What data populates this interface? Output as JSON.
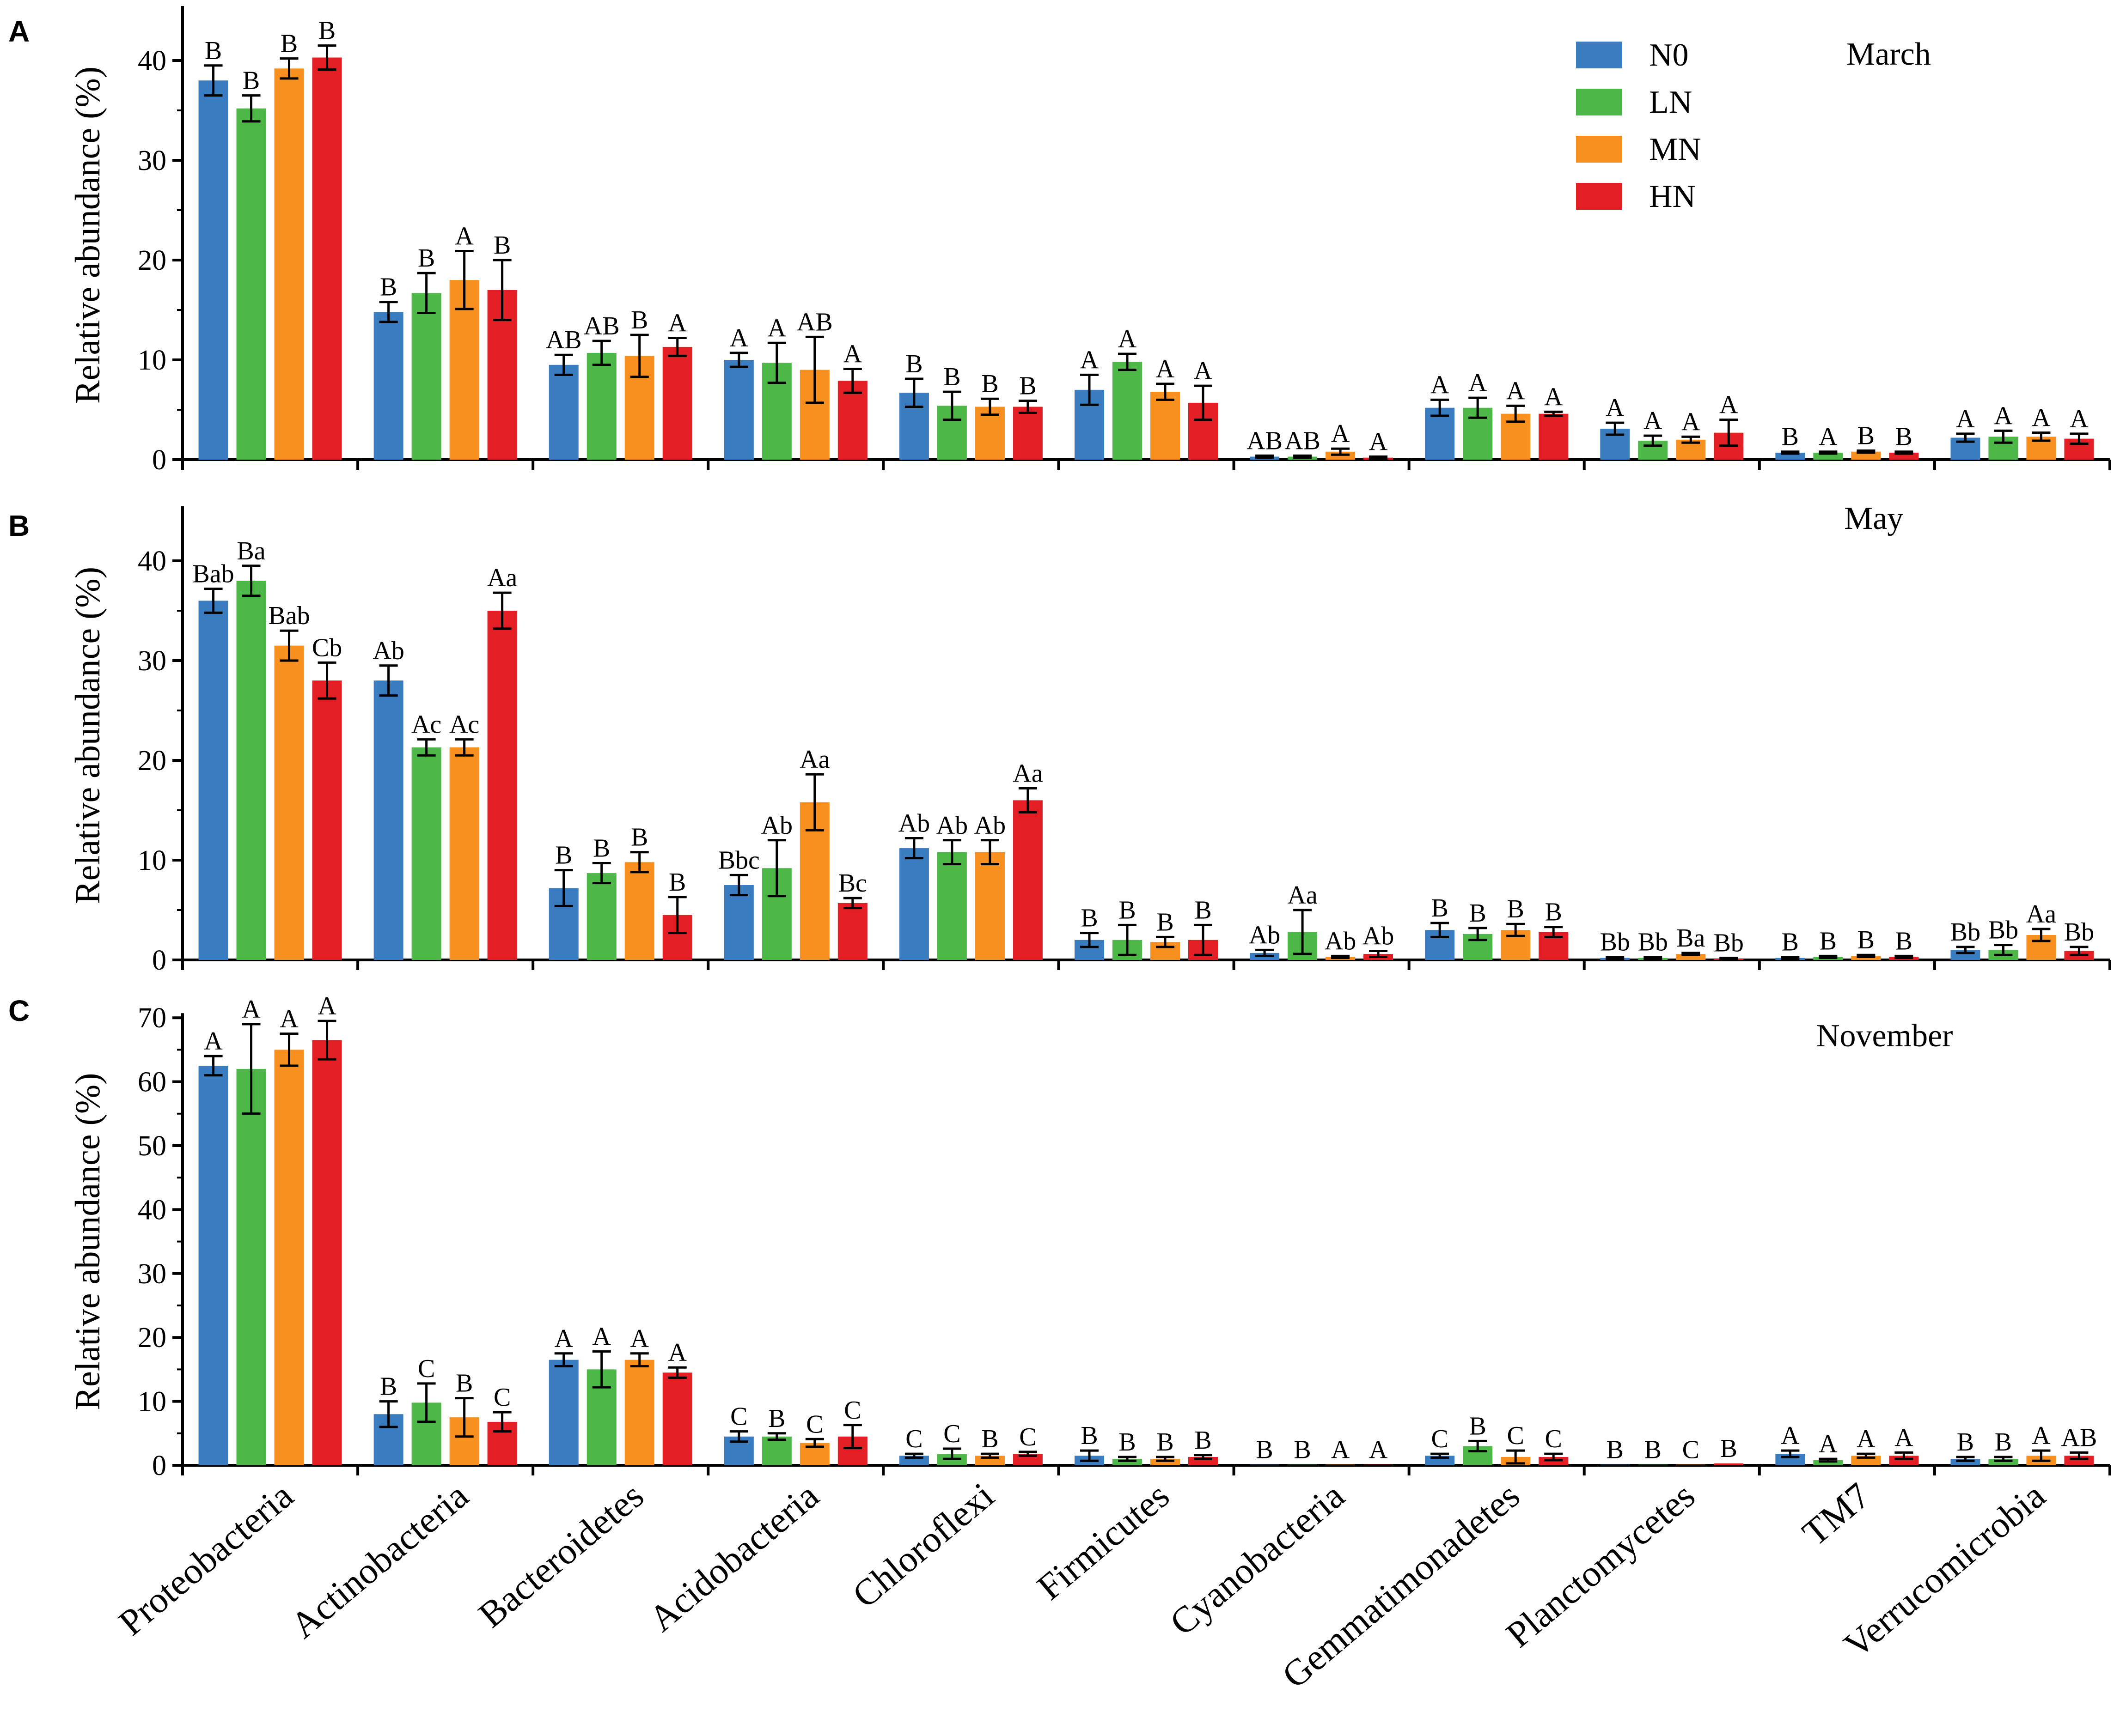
{
  "chart_data": {
    "type": "bar",
    "categories": [
      "Proteobacteria",
      "Actinobacteria",
      "Bacteroidetes",
      "Acidobacteria",
      "Chloroflexi",
      "Firmicutes",
      "Cyanobacteria",
      "Gemmatimonadetes",
      "Planctomycetes",
      "TM7",
      "Verrucomicrobia"
    ],
    "legend": [
      {
        "name": "N0",
        "color": "#3a7cc0"
      },
      {
        "name": "LN",
        "color": "#4db848"
      },
      {
        "name": "MN",
        "color": "#f7901e"
      },
      {
        "name": "HN",
        "color": "#e31e24"
      }
    ],
    "ylabel": "Relative abundance (%)",
    "panels": [
      {
        "letter": "A",
        "month": "March",
        "ylim": [
          0,
          45
        ],
        "yticks": [
          0,
          10,
          20,
          30,
          40
        ],
        "values": [
          [
            38.0,
            35.2,
            39.2,
            40.3
          ],
          [
            14.8,
            16.7,
            18.0,
            17.0
          ],
          [
            9.5,
            10.7,
            10.4,
            11.3
          ],
          [
            10.0,
            9.7,
            9.0,
            7.9
          ],
          [
            6.7,
            5.4,
            5.3,
            5.3
          ],
          [
            7.0,
            9.8,
            6.8,
            5.7
          ],
          [
            0.3,
            0.3,
            0.8,
            0.2
          ],
          [
            5.2,
            5.2,
            4.6,
            4.6
          ],
          [
            3.1,
            1.9,
            2.0,
            2.7
          ],
          [
            0.7,
            0.7,
            0.8,
            0.7
          ],
          [
            2.2,
            2.3,
            2.3,
            2.1
          ]
        ],
        "errors": [
          [
            1.5,
            1.3,
            1.0,
            1.2
          ],
          [
            1.0,
            2.0,
            2.9,
            3.0
          ],
          [
            1.0,
            1.2,
            2.1,
            0.9
          ],
          [
            0.7,
            2.0,
            3.3,
            1.2
          ],
          [
            1.4,
            1.4,
            0.8,
            0.6
          ],
          [
            1.5,
            0.8,
            0.8,
            1.7
          ],
          [
            0.1,
            0.1,
            0.3,
            0.1
          ],
          [
            0.8,
            1.0,
            0.8,
            0.2
          ],
          [
            0.6,
            0.5,
            0.3,
            1.3
          ],
          [
            0.1,
            0.1,
            0.1,
            0.1
          ],
          [
            0.4,
            0.6,
            0.4,
            0.5
          ]
        ],
        "labels": [
          [
            "B",
            "B",
            "B",
            "B"
          ],
          [
            "B",
            "B",
            "A",
            "B"
          ],
          [
            "AB",
            "AB",
            "B",
            "A"
          ],
          [
            "A",
            "A",
            "AB",
            "A"
          ],
          [
            "B",
            "B",
            "B",
            "B"
          ],
          [
            "A",
            "A",
            "A",
            "A"
          ],
          [
            "AB",
            "AB",
            "A",
            "A"
          ],
          [
            "A",
            "A",
            "A",
            "A"
          ],
          [
            "A",
            "A",
            "A",
            "A"
          ],
          [
            "B",
            "A",
            "B",
            "B"
          ],
          [
            "A",
            "A",
            "A",
            "A"
          ]
        ]
      },
      {
        "letter": "B",
        "month": "May",
        "ylim": [
          0,
          45
        ],
        "yticks": [
          0,
          10,
          20,
          30,
          40
        ],
        "values": [
          [
            36.0,
            38.0,
            31.5,
            28.0
          ],
          [
            28.0,
            21.3,
            21.3,
            35.0
          ],
          [
            7.2,
            8.7,
            9.8,
            4.5
          ],
          [
            7.5,
            9.2,
            15.8,
            5.7
          ],
          [
            11.2,
            10.8,
            10.8,
            16.0
          ],
          [
            2.0,
            2.0,
            1.8,
            2.0
          ],
          [
            0.7,
            2.8,
            0.3,
            0.6
          ],
          [
            3.0,
            2.6,
            3.0,
            2.8
          ],
          [
            0.2,
            0.2,
            0.6,
            0.1
          ],
          [
            0.2,
            0.3,
            0.4,
            0.3
          ],
          [
            1.0,
            1.0,
            2.5,
            0.9
          ]
        ],
        "errors": [
          [
            1.2,
            1.5,
            1.5,
            1.8
          ],
          [
            1.5,
            0.8,
            0.8,
            1.8
          ],
          [
            1.8,
            1.0,
            1.0,
            1.8
          ],
          [
            1.0,
            2.8,
            2.8,
            0.5
          ],
          [
            1.0,
            1.2,
            1.2,
            1.2
          ],
          [
            0.7,
            1.5,
            0.5,
            1.5
          ],
          [
            0.3,
            2.2,
            0.1,
            0.3
          ],
          [
            0.7,
            0.6,
            0.6,
            0.5
          ],
          [
            0.1,
            0.1,
            0.1,
            0.1
          ],
          [
            0.1,
            0.1,
            0.1,
            0.1
          ],
          [
            0.3,
            0.5,
            0.6,
            0.4
          ]
        ],
        "labels": [
          [
            "Bab",
            "Ba",
            "Bab",
            "Cb"
          ],
          [
            "Ab",
            "Ac",
            "Ac",
            "Aa"
          ],
          [
            "B",
            "B",
            "B",
            "B"
          ],
          [
            "Bbc",
            "Ab",
            "Aa",
            "Bc"
          ],
          [
            "Ab",
            "Ab",
            "Ab",
            "Aa"
          ],
          [
            "B",
            "B",
            "B",
            "B"
          ],
          [
            "Ab",
            "Aa",
            "Ab",
            "Ab"
          ],
          [
            "B",
            "B",
            "B",
            "B"
          ],
          [
            "Bb",
            "Bb",
            "Ba",
            "Bb"
          ],
          [
            "B",
            "B",
            "B",
            "B"
          ],
          [
            "Bb",
            "Bb",
            "Aa",
            "Bb"
          ]
        ]
      },
      {
        "letter": "C",
        "month": "November",
        "ylim": [
          0,
          70
        ],
        "yticks": [
          0,
          10,
          20,
          30,
          40,
          50,
          60,
          70
        ],
        "values": [
          [
            62.5,
            62.0,
            65.0,
            66.5
          ],
          [
            8.0,
            9.8,
            7.5,
            6.8
          ],
          [
            16.5,
            15.0,
            16.5,
            14.5
          ],
          [
            4.5,
            4.5,
            3.5,
            4.5
          ],
          [
            1.5,
            1.8,
            1.5,
            1.8
          ],
          [
            1.5,
            1.0,
            1.0,
            1.3
          ],
          [
            0.1,
            0.1,
            0.1,
            0.1
          ],
          [
            1.5,
            3.0,
            1.3,
            1.3
          ],
          [
            0.1,
            0.1,
            0.1,
            0.3
          ],
          [
            1.8,
            0.8,
            1.5,
            1.5
          ],
          [
            1.0,
            1.0,
            1.5,
            1.5
          ]
        ],
        "errors": [
          [
            1.5,
            7.0,
            2.5,
            3.0
          ],
          [
            2.0,
            3.0,
            3.0,
            1.5
          ],
          [
            1.0,
            2.8,
            1.0,
            0.8
          ],
          [
            0.8,
            0.5,
            0.6,
            1.8
          ],
          [
            0.3,
            0.8,
            0.3,
            0.3
          ],
          [
            0.8,
            0.3,
            0.3,
            0.3
          ],
          [
            0.0,
            0.0,
            0.0,
            0.0
          ],
          [
            0.3,
            0.8,
            1.0,
            0.5
          ],
          [
            0.0,
            0.0,
            0.0,
            0.0
          ],
          [
            0.5,
            0.2,
            0.3,
            0.5
          ],
          [
            0.3,
            0.3,
            0.8,
            0.5
          ]
        ],
        "labels": [
          [
            "A",
            "A",
            "A",
            "A"
          ],
          [
            "B",
            "C",
            "B",
            "C"
          ],
          [
            "A",
            "A",
            "A",
            "A"
          ],
          [
            "C",
            "B",
            "C",
            "C"
          ],
          [
            "C",
            "C",
            "B",
            "C"
          ],
          [
            "B",
            "B",
            "B",
            "B"
          ],
          [
            "B",
            "B",
            "A",
            "A"
          ],
          [
            "C",
            "B",
            "C",
            "C"
          ],
          [
            "B",
            "B",
            "C",
            "B"
          ],
          [
            "A",
            "A",
            "A",
            "A"
          ],
          [
            "B",
            "B",
            "A",
            "AB"
          ]
        ]
      }
    ]
  }
}
